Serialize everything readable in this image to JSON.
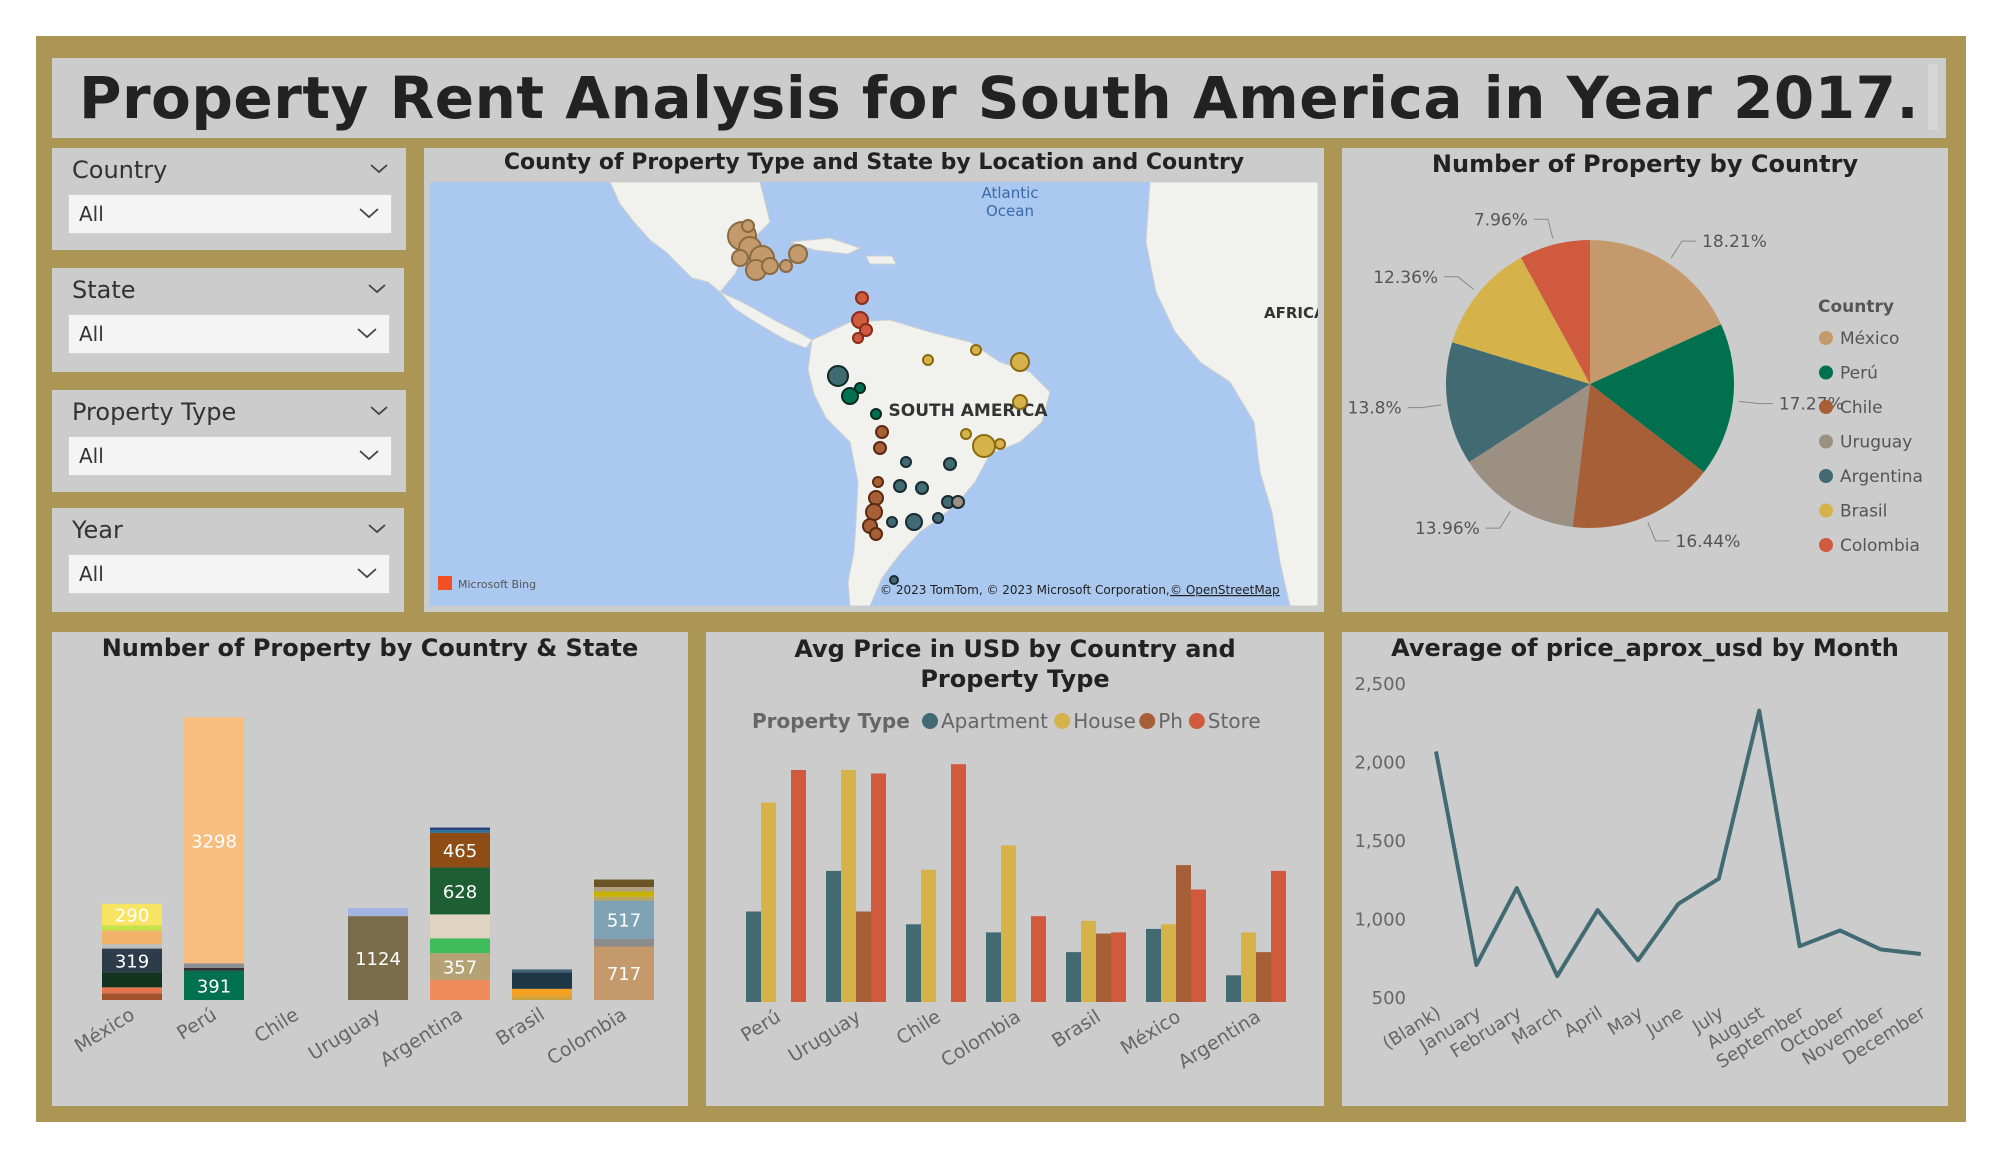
{
  "title": "Property Rent Analysis for South America in Year 2017.",
  "slicers": [
    {
      "label": "Country",
      "value": "All"
    },
    {
      "label": "State",
      "value": "All"
    },
    {
      "label": "Property Type",
      "value": "All"
    },
    {
      "label": "Year",
      "value": "All"
    }
  ],
  "map": {
    "title": "County of Property Type and State by Location and Country",
    "ocean_label_1": "Atlantic",
    "ocean_label_2": "Ocean",
    "continent_label": "SOUTH AMERICA",
    "africa_label": "AFRICA",
    "logo": "Microsoft Bing",
    "attribution": "© 2023 TomTom, © 2023 Microsoft Corporation,",
    "attribution_link": "© OpenStreetMap"
  },
  "colors": {
    "México": "#c49a6c",
    "Perú": "#00704f",
    "Chile": "#a75f38",
    "Uruguay": "#9c9082",
    "Argentina": "#416a72",
    "Brasil": "#d6b24a",
    "Colombia": "#cf5a3e"
  },
  "chart_data": [
    {
      "type": "pie",
      "title": "Number of Property by Country",
      "legend_title": "Country",
      "legend_position": "right",
      "categories": [
        "México",
        "Perú",
        "Chile",
        "Uruguay",
        "Argentina",
        "Brasil",
        "Colombia"
      ],
      "values": [
        18.21,
        17.27,
        16.44,
        13.96,
        13.8,
        12.36,
        7.96
      ],
      "labels": [
        "18.21%",
        "17.27%",
        "16.44%",
        "13.96%",
        "13.8%",
        "12.36%",
        "7.96%"
      ]
    },
    {
      "type": "bar",
      "stacked": true,
      "title": "Number of Property by Country & State",
      "categories": [
        "México",
        "Perú",
        "Chile",
        "Uruguay",
        "Argentina",
        "Brasil",
        "Colombia"
      ],
      "data_labels": [
        {
          "category": "México",
          "value": 290
        },
        {
          "category": "México",
          "value": 319
        },
        {
          "category": "Perú",
          "value": 3298
        },
        {
          "category": "Perú",
          "value": 391
        },
        {
          "category": "Uruguay",
          "value": 1124
        },
        {
          "category": "Argentina",
          "value": 465
        },
        {
          "category": "Argentina",
          "value": 628
        },
        {
          "category": "Argentina",
          "value": 357
        },
        {
          "category": "Colombia",
          "value": 517
        },
        {
          "category": "Colombia",
          "value": 717
        }
      ],
      "stacks": [
        {
          "category": "México",
          "segments": [
            {
              "value": 90,
              "color": "#a0522d"
            },
            {
              "value": 80,
              "color": "#e4754f"
            },
            {
              "value": 200,
              "color": "#12331d"
            },
            {
              "value": 319,
              "color": "#2e3b4a",
              "label": "319"
            },
            {
              "value": 60,
              "color": "#bdbdbd"
            },
            {
              "value": 180,
              "color": "#f2b36b"
            },
            {
              "value": 70,
              "color": "#c6e249"
            },
            {
              "value": 290,
              "color": "#f7e463",
              "label": "290"
            }
          ]
        },
        {
          "category": "Perú",
          "segments": [
            {
              "value": 391,
              "color": "#00704f",
              "label": "391"
            },
            {
              "value": 40,
              "color": "#333333"
            },
            {
              "value": 60,
              "color": "#8a8f94"
            },
            {
              "value": 3298,
              "color": "#f7be80",
              "label": "3298"
            }
          ]
        },
        {
          "category": "Chile",
          "segments": []
        },
        {
          "category": "Uruguay",
          "segments": [
            {
              "value": 1124,
              "color": "#7a6c4a",
              "label": "1124"
            },
            {
              "value": 110,
              "color": "#a4b4e0"
            }
          ]
        },
        {
          "category": "Argentina",
          "segments": [
            {
              "value": 270,
              "color": "#ef8a5b"
            },
            {
              "value": 357,
              "color": "#b5a274",
              "label": "357"
            },
            {
              "value": 200,
              "color": "#3ebd5a"
            },
            {
              "value": 320,
              "color": "#e2d4c2"
            },
            {
              "value": 628,
              "color": "#1d5e32",
              "label": "628"
            },
            {
              "value": 465,
              "color": "#8d4d14",
              "label": "465"
            },
            {
              "value": 40,
              "color": "#2d7099"
            },
            {
              "value": 30,
              "color": "#263a7a"
            }
          ]
        },
        {
          "category": "Brasil",
          "segments": [
            {
              "value": 50,
              "color": "#d0a23a"
            },
            {
              "value": 100,
              "color": "#f4a023"
            },
            {
              "value": 220,
              "color": "#1e3744"
            },
            {
              "value": 40,
              "color": "#3f6275"
            }
          ]
        },
        {
          "category": "Colombia",
          "segments": [
            {
              "value": 717,
              "color": "#c49a6c",
              "label": "717"
            },
            {
              "value": 100,
              "color": "#8c8c8c"
            },
            {
              "value": 517,
              "color": "#7fa3b5",
              "label": "517"
            },
            {
              "value": 50,
              "color": "#bba65a"
            },
            {
              "value": 70,
              "color": "#c8b400"
            },
            {
              "value": 60,
              "color": "#b1a07e"
            },
            {
              "value": 100,
              "color": "#6b5326"
            }
          ]
        }
      ],
      "ylim": [
        0,
        4100
      ]
    },
    {
      "type": "bar",
      "title": "Avg Price in USD by Country and Property Type",
      "legend_title": "Property Type",
      "legend_position": "top",
      "categories": [
        "Perú",
        "Uruguay",
        "Chile",
        "Colombia",
        "Brasil",
        "México",
        "Argentina"
      ],
      "series": [
        {
          "name": "Apartment",
          "color": "#416a72",
          "values": [
            780,
            1130,
            670,
            600,
            430,
            630,
            230
          ]
        },
        {
          "name": "House",
          "color": "#d6b24a",
          "values": [
            1720,
            2000,
            1140,
            1350,
            700,
            670,
            600
          ]
        },
        {
          "name": "Ph",
          "color": "#a75f38",
          "values": [
            null,
            780,
            null,
            null,
            590,
            1180,
            430
          ]
        },
        {
          "name": "Store",
          "color": "#cf5a3e",
          "values": [
            2000,
            1970,
            2050,
            740,
            600,
            970,
            1130
          ]
        }
      ],
      "ylim": [
        0,
        2500
      ]
    },
    {
      "type": "line",
      "title": "Average of price_aprox_usd by Month",
      "x": [
        "(Blank)",
        "January",
        "February",
        "March",
        "April",
        "May",
        "June",
        "July",
        "August",
        "September",
        "October",
        "November",
        "December"
      ],
      "values": [
        2070,
        710,
        1200,
        640,
        1060,
        740,
        1100,
        1260,
        2330,
        830,
        930,
        810,
        780
      ],
      "yticks": [
        "2,500",
        "2,000",
        "1,500",
        "1,000",
        "500"
      ],
      "ytick_values": [
        2500,
        2000,
        1500,
        1000,
        500
      ],
      "ylim": [
        500,
        2500
      ],
      "color": "#416a72"
    }
  ]
}
